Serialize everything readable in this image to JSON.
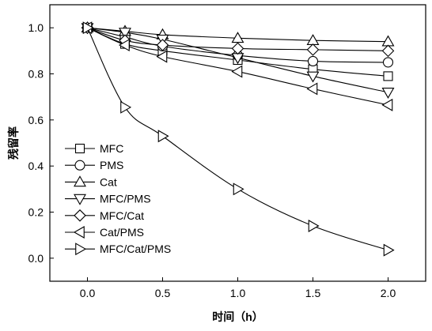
{
  "chart_data": {
    "type": "line",
    "xlabel": "时间（h）",
    "ylabel": "残留率",
    "xlim": [
      -0.25,
      2.25
    ],
    "ylim": [
      -0.1,
      1.1
    ],
    "xticks": [
      "0.0",
      "0.5",
      "1.0",
      "1.5",
      "2.0"
    ],
    "yticks": [
      "0.0",
      "0.2",
      "0.4",
      "0.6",
      "0.8",
      "1.0"
    ],
    "grid": false,
    "legend_position": "bottom-left",
    "series": [
      {
        "name": "MFC",
        "marker": "square",
        "x": [
          0,
          0.25,
          0.5,
          1.0,
          1.5,
          2.0
        ],
        "y": [
          1.0,
          0.93,
          0.9,
          0.86,
          0.82,
          0.79
        ]
      },
      {
        "name": "PMS",
        "marker": "circle",
        "x": [
          0,
          0.25,
          0.5,
          1.0,
          1.5,
          2.0
        ],
        "y": [
          1.0,
          0.96,
          0.92,
          0.88,
          0.855,
          0.85
        ]
      },
      {
        "name": "Cat",
        "marker": "triangle-up",
        "x": [
          0,
          0.25,
          0.5,
          1.0,
          1.5,
          2.0
        ],
        "y": [
          1.0,
          0.985,
          0.97,
          0.955,
          0.945,
          0.94
        ]
      },
      {
        "name": "MFC/PMS",
        "marker": "triangle-down",
        "x": [
          0,
          0.25,
          0.5,
          1.0,
          1.5,
          2.0
        ],
        "y": [
          1.0,
          0.98,
          0.95,
          0.87,
          0.79,
          0.72
        ]
      },
      {
        "name": "MFC/Cat",
        "marker": "diamond",
        "x": [
          0,
          0.25,
          0.5,
          1.0,
          1.5,
          2.0
        ],
        "y": [
          1.0,
          0.945,
          0.925,
          0.91,
          0.905,
          0.9
        ]
      },
      {
        "name": "Cat/PMS",
        "marker": "triangle-left",
        "x": [
          0,
          0.25,
          0.5,
          1.0,
          1.5,
          2.0
        ],
        "y": [
          1.0,
          0.925,
          0.875,
          0.81,
          0.735,
          0.665
        ]
      },
      {
        "name": "MFC/Cat/PMS",
        "marker": "triangle-right",
        "x": [
          0,
          0.25,
          0.5,
          1.0,
          1.5,
          2.0
        ],
        "y": [
          1.0,
          0.655,
          0.53,
          0.3,
          0.14,
          0.035
        ]
      }
    ]
  }
}
